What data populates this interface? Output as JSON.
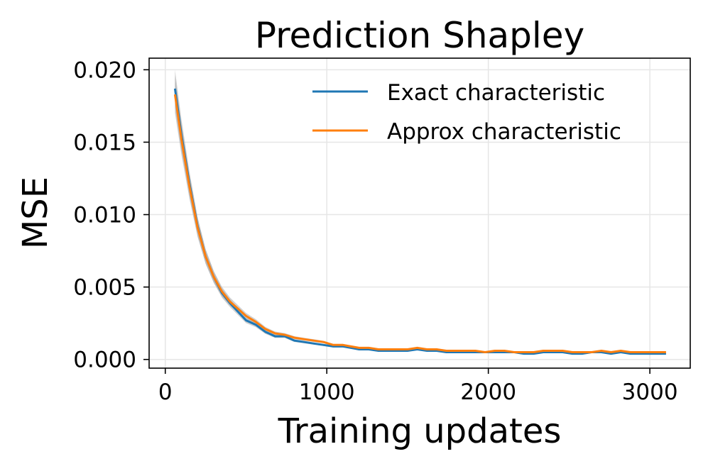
{
  "chart_data": {
    "type": "line",
    "title": "Prediction Shapley",
    "xlabel": "Training updates",
    "ylabel": "MSE",
    "xlim": [
      -100,
      3250
    ],
    "ylim": [
      -0.0006,
      0.0208
    ],
    "xticks": [
      0,
      1000,
      2000,
      3000
    ],
    "xtick_labels": [
      "0",
      "1000",
      "2000",
      "3000"
    ],
    "yticks": [
      0.0,
      0.005,
      0.01,
      0.015,
      0.02
    ],
    "ytick_labels": [
      "0.000",
      "0.005",
      "0.010",
      "0.015",
      "0.020"
    ],
    "grid": true,
    "legend_position": "upper right",
    "x": [
      60,
      100,
      150,
      200,
      250,
      300,
      350,
      400,
      450,
      500,
      560,
      620,
      680,
      740,
      800,
      860,
      920,
      980,
      1040,
      1100,
      1150,
      1200,
      1260,
      1320,
      1380,
      1440,
      1500,
      1560,
      1620,
      1680,
      1740,
      1800,
      1860,
      1920,
      1980,
      2040,
      2100,
      2160,
      2220,
      2280,
      2340,
      2400,
      2460,
      2520,
      2580,
      2640,
      2700,
      2760,
      2820,
      2880,
      2940,
      3000,
      3060,
      3100
    ],
    "series": [
      {
        "name": "Exact characteristic",
        "color": "#1f77b4",
        "values": [
          0.0187,
          0.0155,
          0.0121,
          0.0092,
          0.0071,
          0.0057,
          0.0046,
          0.0039,
          0.0033,
          0.0027,
          0.0024,
          0.0019,
          0.0016,
          0.0016,
          0.0013,
          0.0012,
          0.0011,
          0.001,
          0.0009,
          0.0009,
          0.0008,
          0.0007,
          0.0007,
          0.0006,
          0.0006,
          0.0006,
          0.0006,
          0.0007,
          0.0006,
          0.0006,
          0.0005,
          0.0005,
          0.0005,
          0.0005,
          0.0005,
          0.0005,
          0.0005,
          0.0005,
          0.0004,
          0.0004,
          0.0005,
          0.0005,
          0.0005,
          0.0004,
          0.0004,
          0.0005,
          0.0005,
          0.0004,
          0.0005,
          0.0004,
          0.0004,
          0.0004,
          0.0004,
          0.0004
        ]
      },
      {
        "name": "Approx characteristic",
        "color": "#ff7f0e",
        "values": [
          0.0183,
          0.0152,
          0.0119,
          0.0091,
          0.0071,
          0.0057,
          0.0047,
          0.004,
          0.0035,
          0.003,
          0.0026,
          0.0021,
          0.0018,
          0.0017,
          0.0015,
          0.0014,
          0.0013,
          0.0012,
          0.001,
          0.001,
          0.0009,
          0.0008,
          0.0008,
          0.0007,
          0.0007,
          0.0007,
          0.0007,
          0.0008,
          0.0007,
          0.0007,
          0.0006,
          0.0006,
          0.0006,
          0.0006,
          0.0005,
          0.0006,
          0.0006,
          0.0005,
          0.0005,
          0.0005,
          0.0006,
          0.0006,
          0.0006,
          0.0005,
          0.0005,
          0.0005,
          0.0006,
          0.0005,
          0.0006,
          0.0005,
          0.0005,
          0.0005,
          0.0005,
          0.0005
        ]
      }
    ],
    "band_color": "#aaaaaa"
  }
}
